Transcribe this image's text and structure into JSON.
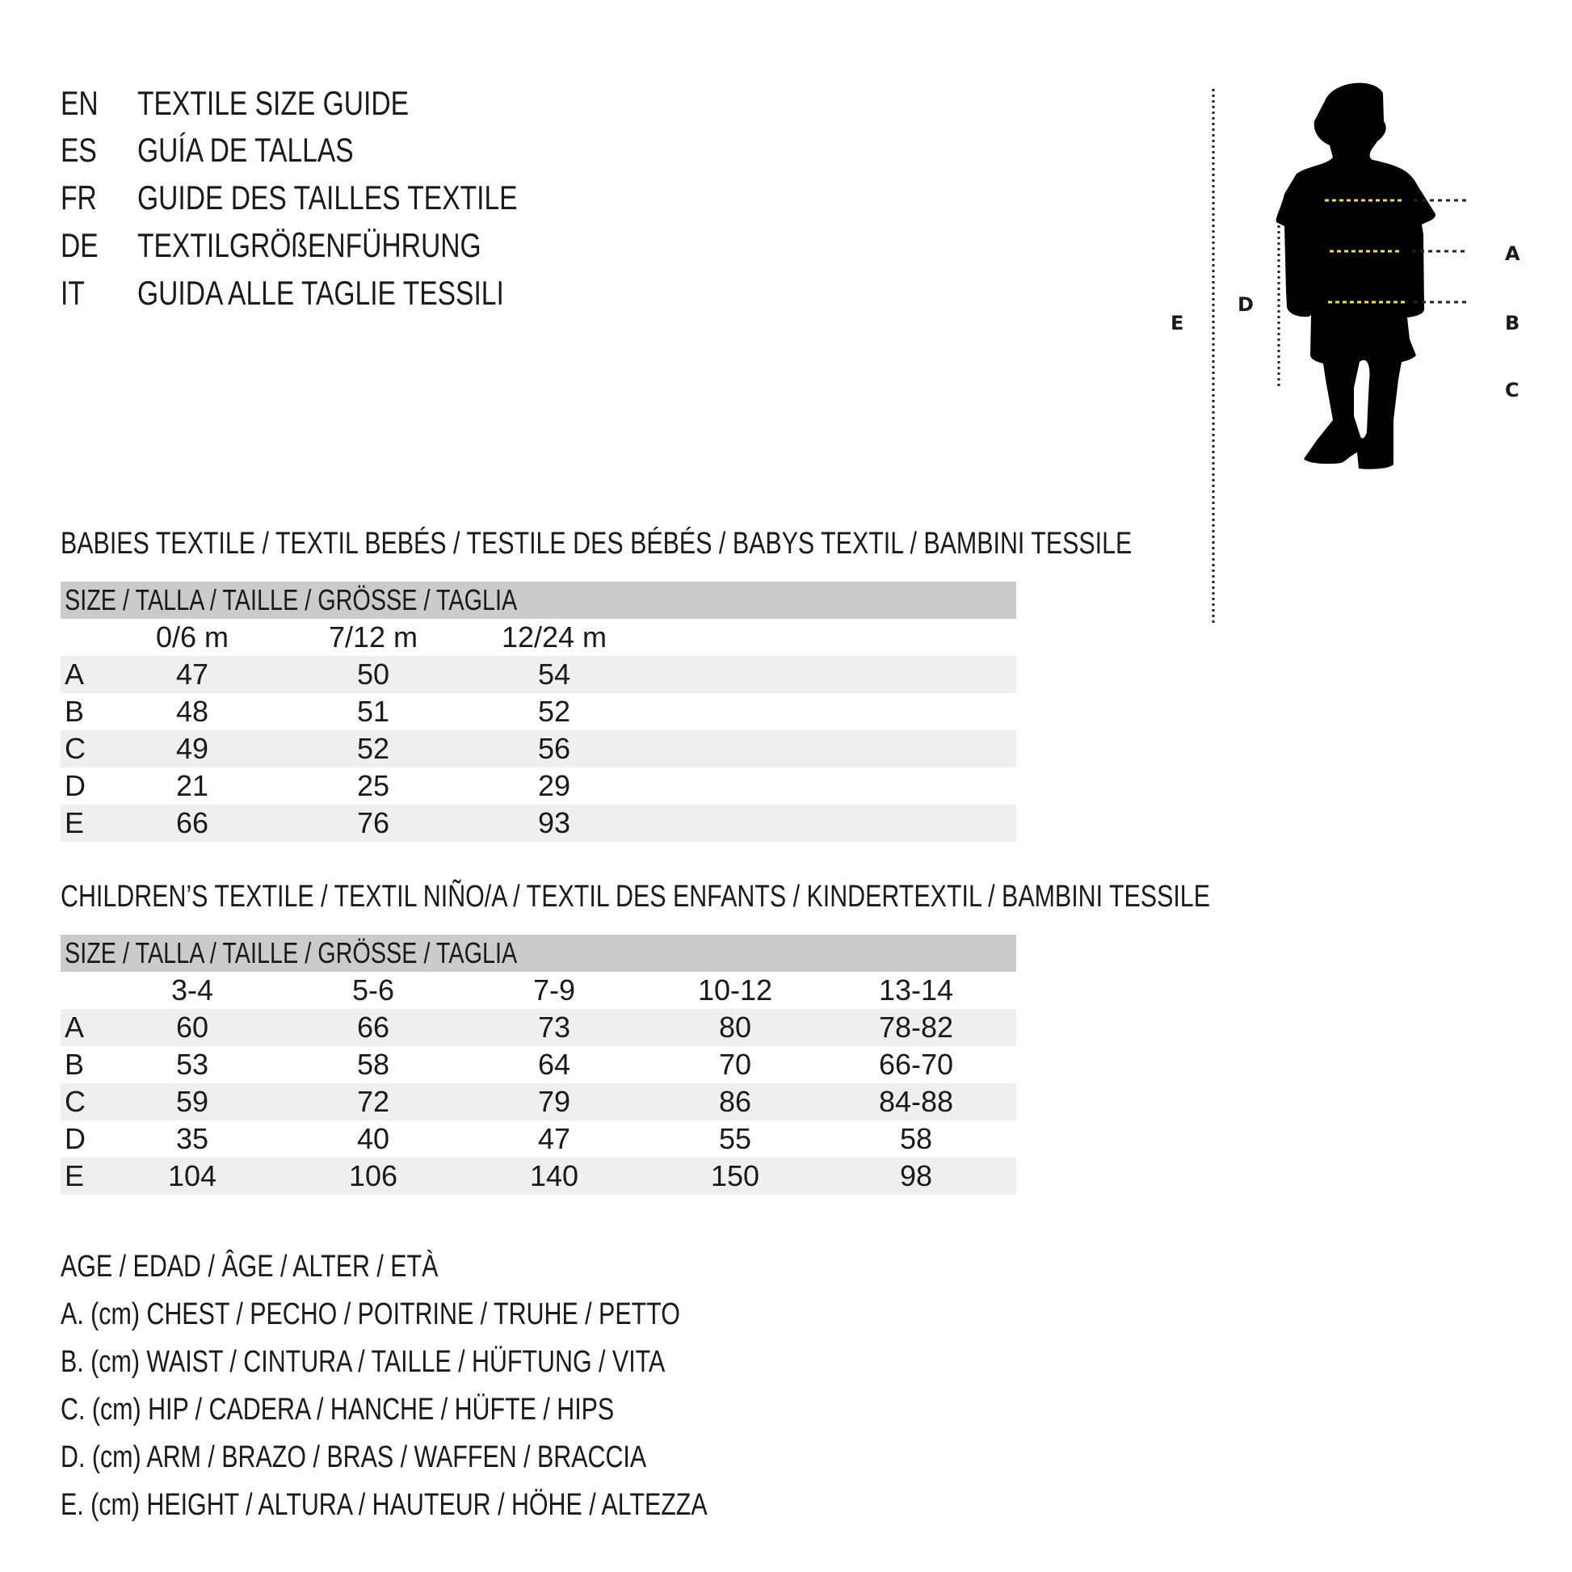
{
  "titles": [
    {
      "code": "EN",
      "text": "TEXTILE SIZE GUIDE"
    },
    {
      "code": "ES",
      "text": "GUÍA DE TALLAS"
    },
    {
      "code": "FR",
      "text": "GUIDE DES TAILLES TEXTILE"
    },
    {
      "code": "DE",
      "text": "TEXTILGRÖßENFÜHRUNG"
    },
    {
      "code": "IT",
      "text": "GUIDA ALLE TAGLIE TESSILI"
    }
  ],
  "babies": {
    "heading": "BABIES TEXTILE / TEXTIL BEBÉS / TESTILE DES BÉBÉS / BABYS TEXTIL / BAMBINI TESSILE",
    "size_header": "SIZE / TALLA / TAILLE / GRÖSSE / TAGLIA",
    "columns": [
      "0/6 m",
      "7/12 m",
      "12/24 m"
    ],
    "rows": [
      {
        "label": "A",
        "values": [
          "47",
          "50",
          "54"
        ]
      },
      {
        "label": "B",
        "values": [
          "48",
          "51",
          "52"
        ]
      },
      {
        "label": "C",
        "values": [
          "49",
          "52",
          "56"
        ]
      },
      {
        "label": "D",
        "values": [
          "21",
          "25",
          "29"
        ]
      },
      {
        "label": "E",
        "values": [
          "66",
          "76",
          "93"
        ]
      }
    ]
  },
  "children": {
    "heading": "CHILDREN’S TEXTILE / TEXTIL NIÑO/A / TEXTIL DES ENFANTS / KINDERTEXTIL / BAMBINI TESSILE",
    "size_header": "SIZE / TALLA / TAILLE / GRÖSSE / TAGLIA",
    "columns": [
      "3-4",
      "5-6",
      "7-9",
      "10-12",
      "13-14"
    ],
    "rows": [
      {
        "label": "A",
        "values": [
          "60",
          "66",
          "73",
          "80",
          "78-82"
        ]
      },
      {
        "label": "B",
        "values": [
          "53",
          "58",
          "64",
          "70",
          "66-70"
        ]
      },
      {
        "label": "C",
        "values": [
          "59",
          "72",
          "79",
          "86",
          "84-88"
        ]
      },
      {
        "label": "D",
        "values": [
          "35",
          "40",
          "47",
          "55",
          "58"
        ]
      },
      {
        "label": "E",
        "values": [
          "104",
          "106",
          "140",
          "150",
          "98"
        ]
      }
    ]
  },
  "legend": [
    "AGE / EDAD / ÂGE / ALTER / ETÀ",
    "A. (cm) CHEST / PECHO / POITRINE / TRUHE / PETTO",
    "B. (cm) WAIST / CINTURA / TAILLE / HÜFTUNG / VITA",
    "C. (cm) HIP / CADERA / HANCHE / HÜFTE / HIPS",
    "D. (cm) ARM / BRAZO / BRAS / WAFFEN / BRACCIA",
    "E. (cm) HEIGHT / ALTURA / HAUTEUR / HÖHE / ALTEZZA"
  ],
  "figure": {
    "labels": {
      "a": "A",
      "b": "B",
      "c": "C",
      "d": "D",
      "e": "E"
    },
    "measure_line_color": "#f2e33a",
    "header_bar_color": "#cbcbcc",
    "row_shade_color": "#efefef"
  }
}
